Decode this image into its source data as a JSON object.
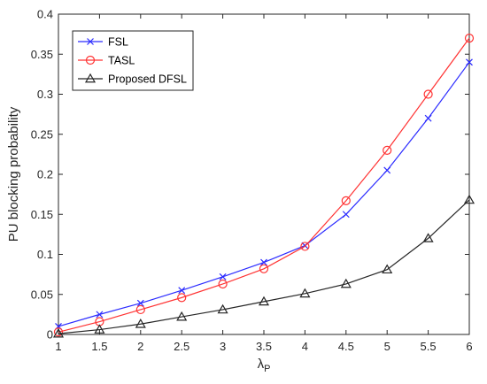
{
  "chart_data": {
    "type": "line",
    "title": "",
    "xlabel": "λ",
    "xlabel_subscript": "P",
    "ylabel": "PU blocking probability",
    "xlim": [
      1,
      6
    ],
    "ylim": [
      0,
      0.4
    ],
    "xticks": [
      1,
      1.5,
      2,
      2.5,
      3,
      3.5,
      4,
      4.5,
      5,
      5.5,
      6
    ],
    "xtick_labels": [
      "1",
      "1.5",
      "2",
      "2.5",
      "3",
      "3.5",
      "4",
      "4.5",
      "5",
      "5.5",
      "6"
    ],
    "yticks": [
      0,
      0.05,
      0.1,
      0.15,
      0.2,
      0.25,
      0.3,
      0.35,
      0.4
    ],
    "ytick_labels": [
      "0",
      "0.05",
      "0.1",
      "0.15",
      "0.2",
      "0.25",
      "0.3",
      "0.35",
      "0.4"
    ],
    "grid": false,
    "legend_position": "top-left",
    "x": [
      1,
      1.5,
      2,
      2.5,
      3,
      3.5,
      4,
      4.5,
      5,
      5.5,
      6
    ],
    "series": [
      {
        "name": "FSL",
        "color": "#2b2bff",
        "marker": "x",
        "values": [
          0.01,
          0.025,
          0.039,
          0.055,
          0.072,
          0.09,
          0.111,
          0.15,
          0.205,
          0.27,
          0.34
        ]
      },
      {
        "name": "TASL",
        "color": "#ff3333",
        "marker": "circle",
        "values": [
          0.003,
          0.016,
          0.031,
          0.046,
          0.063,
          0.082,
          0.11,
          0.167,
          0.23,
          0.3,
          0.37
        ]
      },
      {
        "name": "Proposed DFSL",
        "color": "#262626",
        "marker": "triangle",
        "values": [
          0.001,
          0.006,
          0.013,
          0.022,
          0.031,
          0.041,
          0.051,
          0.063,
          0.081,
          0.12,
          0.168
        ]
      }
    ]
  }
}
